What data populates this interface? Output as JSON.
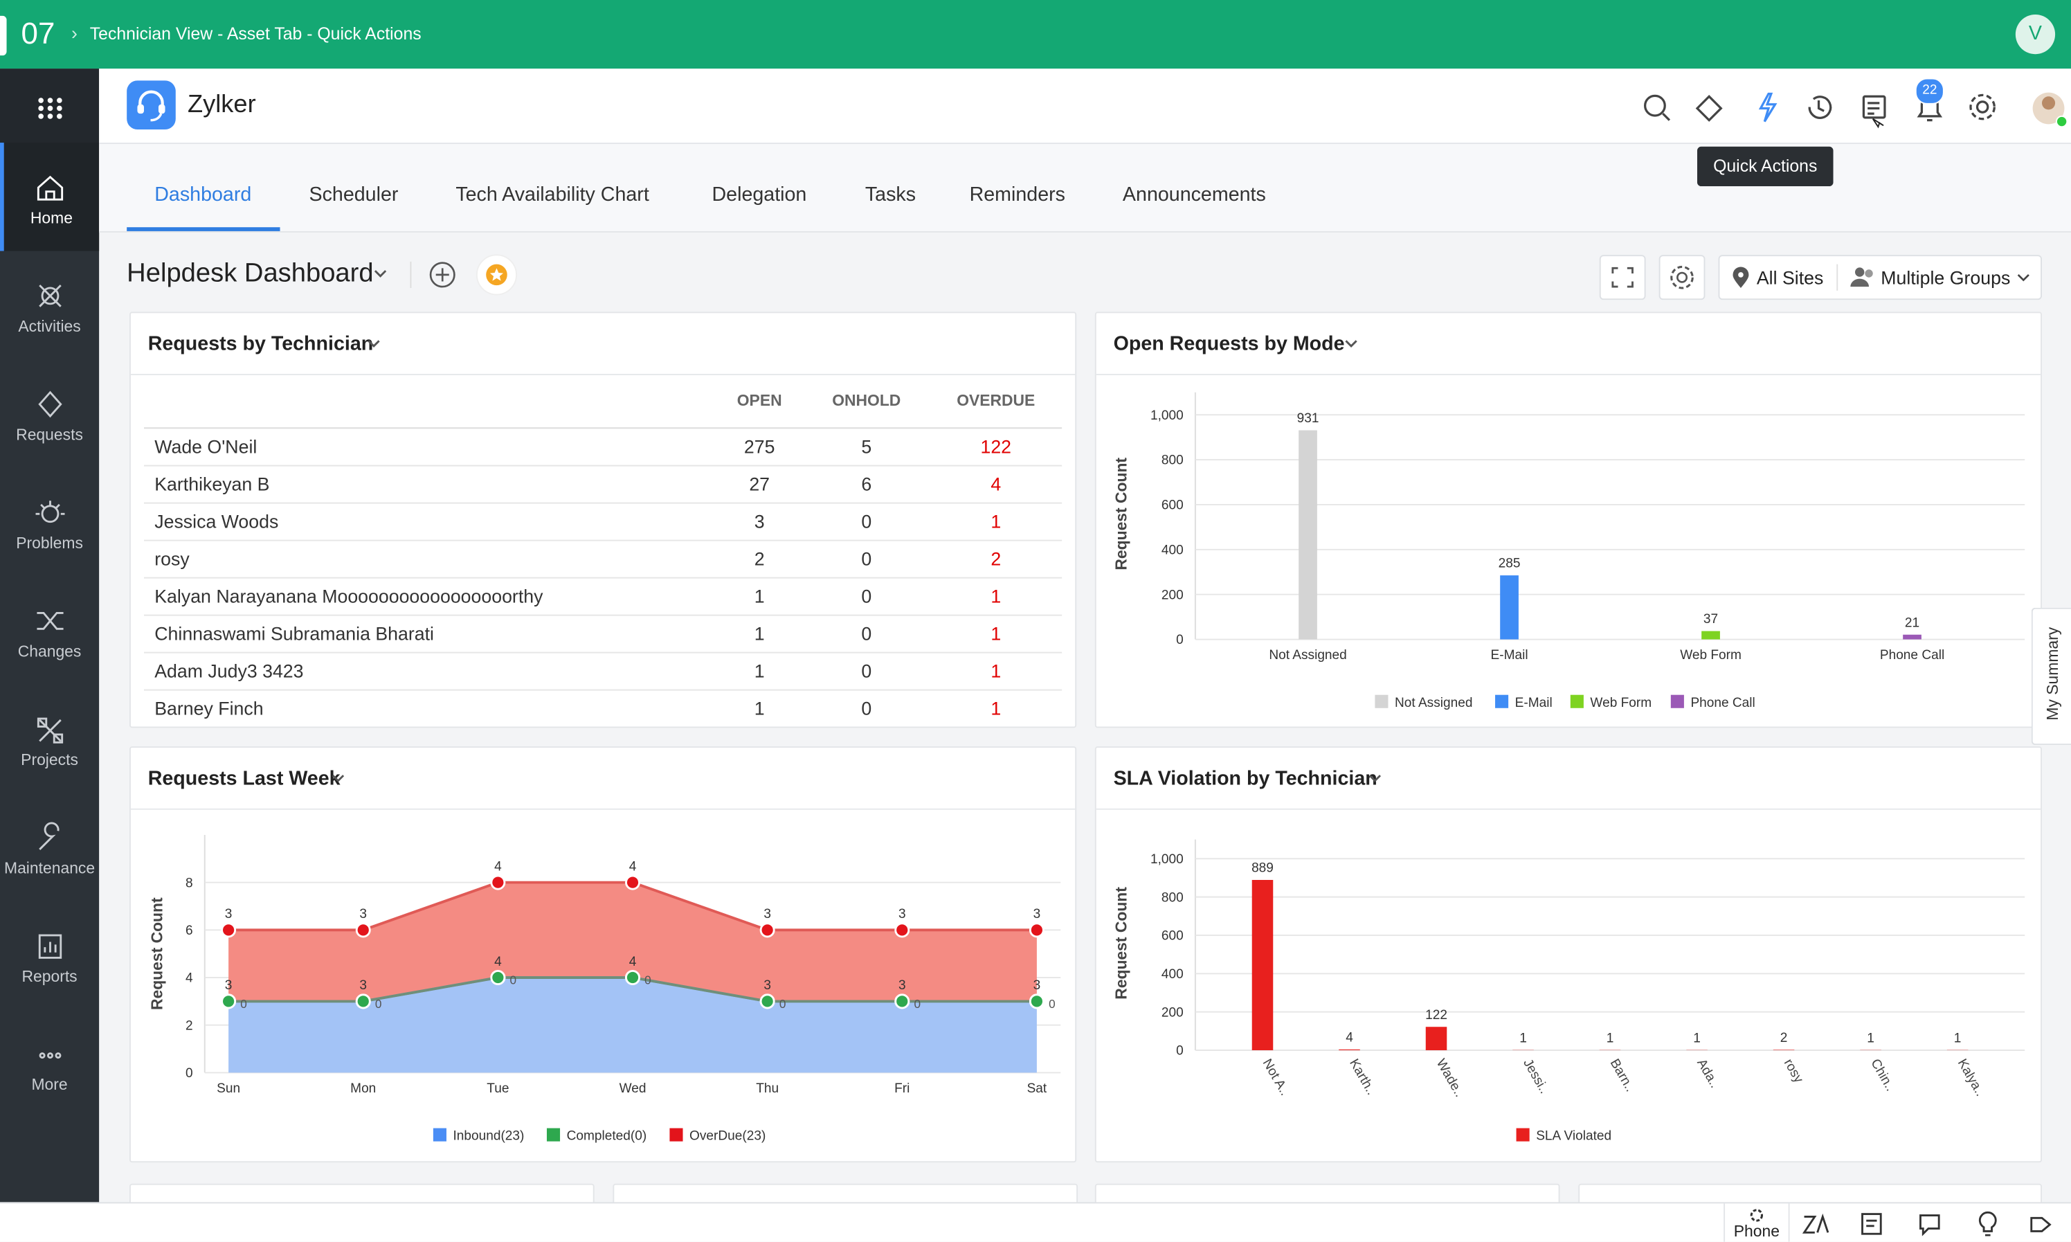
{
  "top_bar": {
    "step": "07",
    "title": "Technician View - Asset Tab - Quick Actions",
    "avatar": "V"
  },
  "sidebar": {
    "items": [
      "Home",
      "Activities",
      "Requests",
      "Problems",
      "Changes",
      "Projects",
      "Maintenance",
      "Reports",
      "More"
    ]
  },
  "header": {
    "app_name": "Zylker",
    "notification_count": "22",
    "tooltip": "Quick Actions"
  },
  "tabs": [
    "Dashboard",
    "Scheduler",
    "Tech Availability Chart",
    "Delegation",
    "Tasks",
    "Reminders",
    "Announcements"
  ],
  "dashboard": {
    "title": "Helpdesk Dashboard",
    "filters": [
      "All Sites",
      "Multiple Groups"
    ]
  },
  "table_widget": {
    "title": "Requests by Technician",
    "columns": [
      "OPEN",
      "ONHOLD",
      "OVERDUE"
    ],
    "rows": [
      [
        "Wade O'Neil",
        275,
        5,
        122
      ],
      [
        "Karthikeyan B",
        27,
        6,
        4
      ],
      [
        "Jessica Woods",
        3,
        0,
        1
      ],
      [
        "rosy",
        2,
        0,
        2
      ],
      [
        "Kalyan Narayanana Mooooooooooooooooorthy",
        1,
        0,
        1
      ],
      [
        "Chinnaswami Subramania Bharati",
        1,
        0,
        1
      ],
      [
        "Adam Judy3 3423",
        1,
        0,
        1
      ],
      [
        "Barney Finch",
        1,
        0,
        1
      ]
    ]
  },
  "chart_data": [
    {
      "type": "bar",
      "title": "Open Requests by Mode",
      "y_label": "Request Count",
      "categories": [
        "Not Assigned",
        "E-Mail",
        "Web Form",
        "Phone Call"
      ],
      "values": [
        931,
        285,
        37,
        21
      ],
      "colors": [
        "#d4d4d4",
        "#3f8cf5",
        "#7ed321",
        "#9b59b6"
      ],
      "ylim": [
        0,
        1100
      ],
      "yticks": [
        0,
        200,
        400,
        600,
        800,
        {
          "value": 1000,
          "label": "1,000"
        }
      ],
      "grid": true
    },
    {
      "type": "area",
      "title": "Requests Last Week",
      "y_label": "Request Count",
      "stacked": true,
      "categories": [
        "Sun",
        "Mon",
        "Tue",
        "Wed",
        "Thu",
        "Fri",
        "Sat"
      ],
      "series": [
        {
          "name": "Inbound(23)",
          "color": "#4a8df5",
          "values": [
            3,
            3,
            4,
            4,
            3,
            3,
            3
          ]
        },
        {
          "name": "Completed(0)",
          "color": "#2ea84e",
          "values": [
            0,
            0,
            0,
            0,
            0,
            0,
            0
          ]
        },
        {
          "name": "OverDue(23)",
          "color": "#e3141b",
          "values": [
            3,
            3,
            4,
            4,
            3,
            3,
            3
          ]
        }
      ],
      "ylim": [
        0,
        10
      ],
      "yticks": [
        0,
        2,
        4,
        6,
        8
      ],
      "grid": true
    },
    {
      "type": "bar",
      "title": "SLA Violation by Technician",
      "y_label": "Request Count",
      "categories": [
        "Not A..",
        "Karth..",
        "Wade..",
        "Jessi..",
        "Barn..",
        "Ada..",
        "rosy",
        "Chin..",
        "Kalya.."
      ],
      "series": [
        {
          "name": "SLA Violated",
          "color": "#e8201e",
          "values": [
            889,
            4,
            122,
            1,
            1,
            1,
            2,
            1,
            1
          ]
        }
      ],
      "ylim": [
        0,
        1100
      ],
      "yticks": [
        0,
        200,
        400,
        600,
        800,
        {
          "value": 1000,
          "label": "1,000"
        }
      ],
      "grid": true
    }
  ],
  "side_tab": "My Summary",
  "bottom_bar": {
    "phone": "Phone"
  }
}
